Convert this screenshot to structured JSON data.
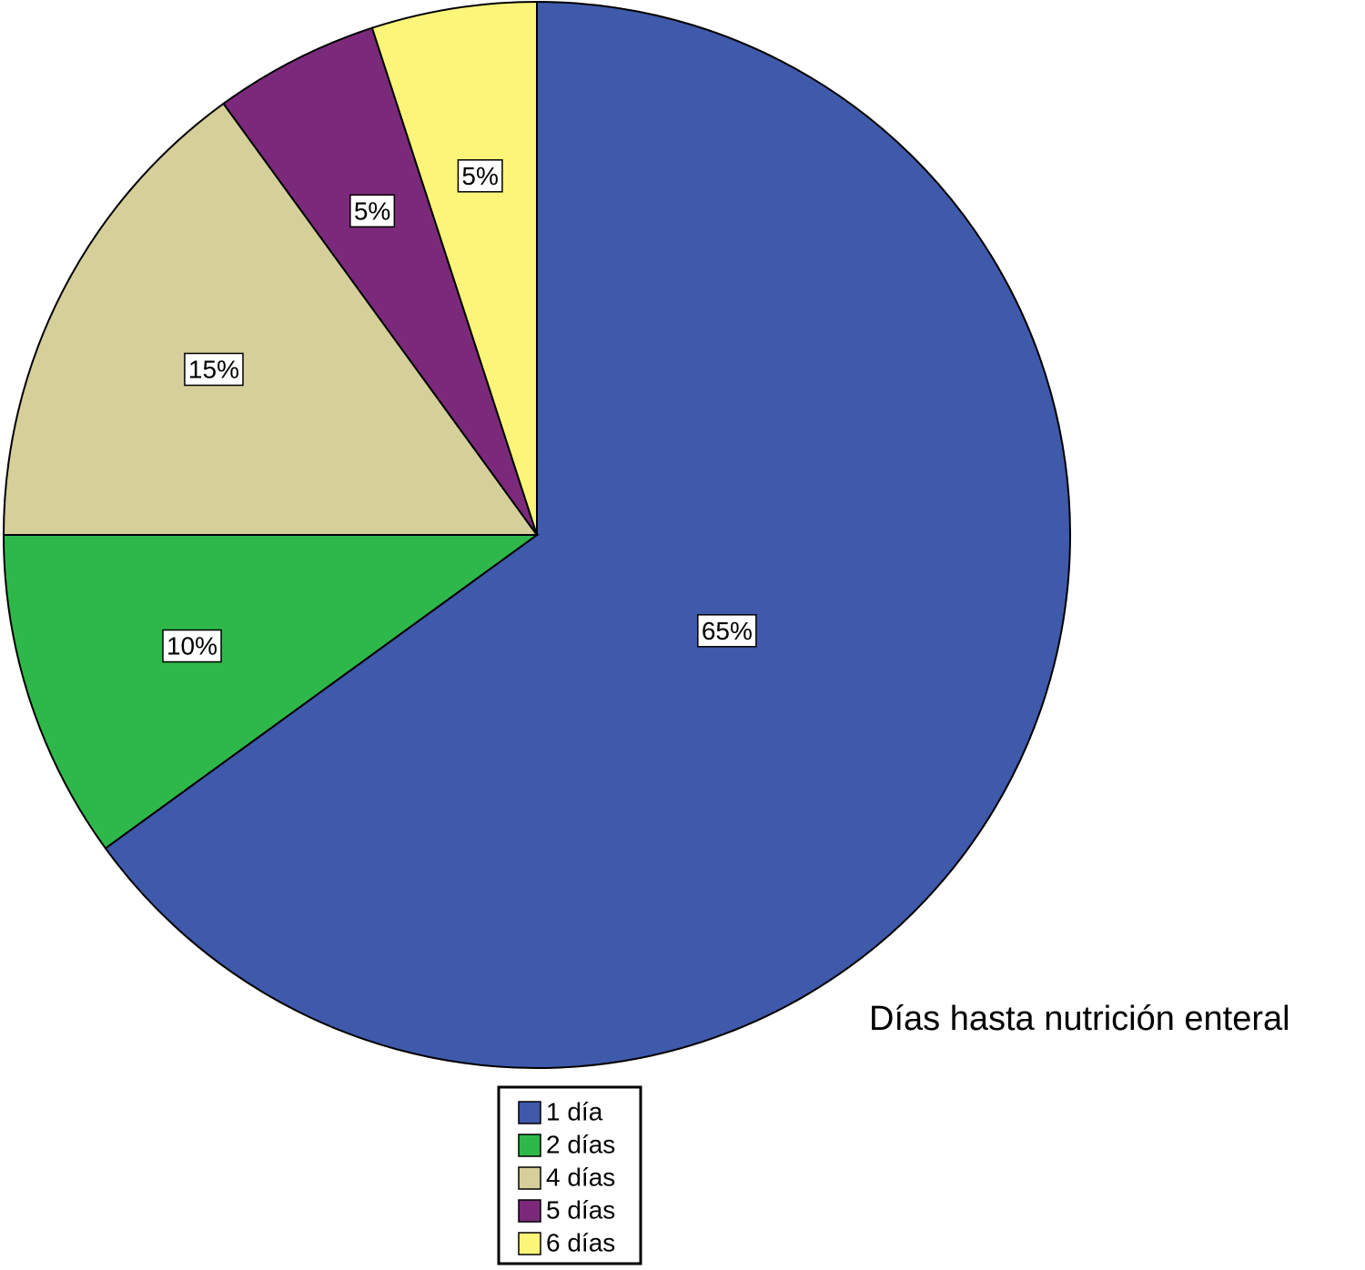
{
  "chart_data": {
    "type": "pie",
    "title": "Días hasta nutrición enteral",
    "categories": [
      "1 día",
      "2 días",
      "4 días",
      "5 días",
      "6 días"
    ],
    "values": [
      65,
      10,
      15,
      5,
      5
    ],
    "value_labels": [
      "65%",
      "10%",
      "15%",
      "5%",
      "5%"
    ],
    "colors": [
      "#3f59ab",
      "#2fb84a",
      "#d5cf9a",
      "#7b2a7b",
      "#fbf67a"
    ],
    "legend": "bottom"
  }
}
